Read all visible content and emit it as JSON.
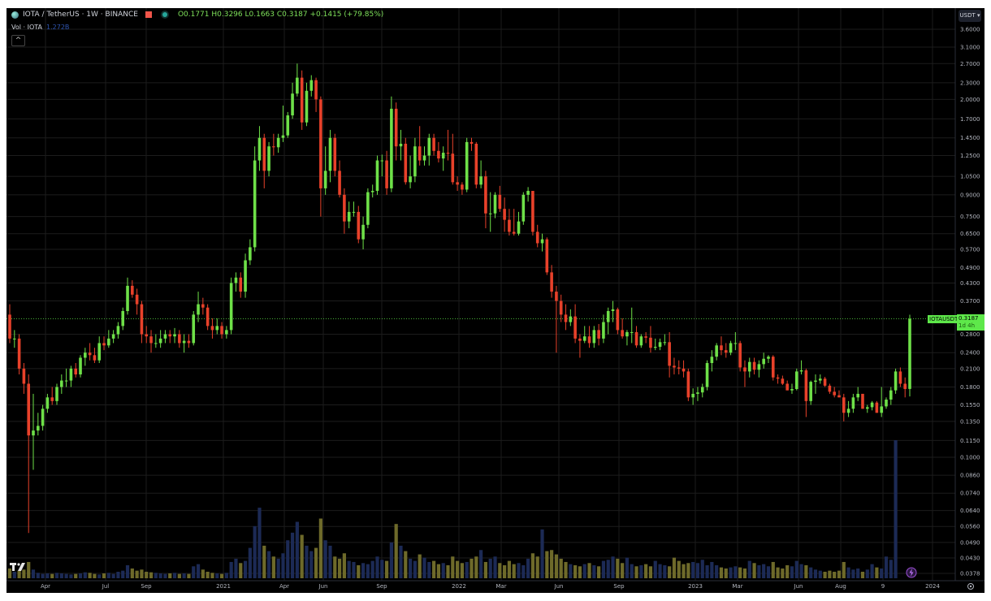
{
  "header": {
    "symbol": "IOTA / TetherUS · 1W · BINANCE",
    "ohlc_text": "O0.1771 H0.3296 L0.1663 C0.3187 +0.1415 (+79.85%)",
    "volume_label": "Vol · IOTA",
    "volume_value": "1.272B",
    "collapse_glyph": "^",
    "currency": "USDT ▾"
  },
  "price_tag": {
    "symbol": "IOTAUSDT",
    "price": "0.3187",
    "countdown": "1d 4h"
  },
  "colors": {
    "up": "#6ee048",
    "down": "#e8412a",
    "vol_up": "#1c2a55",
    "vol_down": "#6e6a2a",
    "grid": "#1c1c1c",
    "bg": "#000000",
    "accent": "#5ee84a"
  },
  "icons": {
    "logo": "tradingview-logo",
    "settings": "gear-icon",
    "flag": "flag-icon",
    "status": "market-open-dot",
    "lightning": "lightning-icon"
  },
  "chart_data": {
    "type": "candlestick",
    "interval": "1W",
    "yscale": "log",
    "ylim": [
      0.0378,
      3.6
    ],
    "grid": true,
    "y_ticks": [
      "3.6000",
      "3.1000",
      "2.7000",
      "2.3000",
      "2.0000",
      "1.7000",
      "1.4500",
      "1.2500",
      "1.0500",
      "0.9000",
      "0.7500",
      "0.6500",
      "0.5700",
      "0.4900",
      "0.4300",
      "0.3700",
      "0.2800",
      "0.2400",
      "0.2100",
      "0.1800",
      "0.1550",
      "0.1350",
      "0.1150",
      "0.1000",
      "0.0860",
      "0.0740",
      "0.0640",
      "0.0560",
      "0.0490",
      "0.0430",
      "0.0378"
    ],
    "x_ticks": [
      "Apr",
      "Jul",
      "Sep",
      "2021",
      "Apr",
      "Jun",
      "Sep",
      "2022",
      "Mar",
      "Jun",
      "Sep",
      "2023",
      "Mar",
      "Jun",
      "Aug",
      "9",
      "2024"
    ],
    "last_price": 0.3187,
    "candles_ohlc": [
      [
        0.33,
        0.36,
        0.26,
        0.27
      ],
      [
        0.27,
        0.29,
        0.25,
        0.27
      ],
      [
        0.27,
        0.28,
        0.2,
        0.21
      ],
      [
        0.21,
        0.22,
        0.17,
        0.185
      ],
      [
        0.185,
        0.2,
        0.053,
        0.12
      ],
      [
        0.12,
        0.17,
        0.09,
        0.125
      ],
      [
        0.125,
        0.145,
        0.12,
        0.13
      ],
      [
        0.13,
        0.155,
        0.125,
        0.15
      ],
      [
        0.15,
        0.17,
        0.145,
        0.165
      ],
      [
        0.165,
        0.18,
        0.155,
        0.16
      ],
      [
        0.16,
        0.185,
        0.155,
        0.18
      ],
      [
        0.18,
        0.2,
        0.17,
        0.19
      ],
      [
        0.19,
        0.21,
        0.18,
        0.19
      ],
      [
        0.19,
        0.215,
        0.18,
        0.21
      ],
      [
        0.21,
        0.22,
        0.195,
        0.2
      ],
      [
        0.2,
        0.235,
        0.195,
        0.23
      ],
      [
        0.23,
        0.25,
        0.215,
        0.24
      ],
      [
        0.24,
        0.26,
        0.225,
        0.235
      ],
      [
        0.235,
        0.25,
        0.22,
        0.225
      ],
      [
        0.225,
        0.275,
        0.22,
        0.26
      ],
      [
        0.26,
        0.275,
        0.245,
        0.255
      ],
      [
        0.255,
        0.29,
        0.25,
        0.27
      ],
      [
        0.27,
        0.29,
        0.26,
        0.28
      ],
      [
        0.28,
        0.31,
        0.27,
        0.3
      ],
      [
        0.3,
        0.35,
        0.29,
        0.34
      ],
      [
        0.34,
        0.45,
        0.33,
        0.42
      ],
      [
        0.42,
        0.44,
        0.38,
        0.39
      ],
      [
        0.39,
        0.41,
        0.33,
        0.36
      ],
      [
        0.36,
        0.37,
        0.26,
        0.28
      ],
      [
        0.28,
        0.3,
        0.26,
        0.275
      ],
      [
        0.275,
        0.29,
        0.24,
        0.26
      ],
      [
        0.26,
        0.28,
        0.25,
        0.26
      ],
      [
        0.26,
        0.29,
        0.25,
        0.27
      ],
      [
        0.27,
        0.29,
        0.26,
        0.28
      ],
      [
        0.28,
        0.29,
        0.26,
        0.275
      ],
      [
        0.275,
        0.295,
        0.26,
        0.28
      ],
      [
        0.28,
        0.29,
        0.25,
        0.26
      ],
      [
        0.26,
        0.28,
        0.24,
        0.265
      ],
      [
        0.265,
        0.28,
        0.25,
        0.26
      ],
      [
        0.26,
        0.34,
        0.255,
        0.33
      ],
      [
        0.33,
        0.4,
        0.31,
        0.36
      ],
      [
        0.36,
        0.38,
        0.33,
        0.35
      ],
      [
        0.35,
        0.36,
        0.29,
        0.3
      ],
      [
        0.3,
        0.32,
        0.27,
        0.29
      ],
      [
        0.29,
        0.32,
        0.28,
        0.3
      ],
      [
        0.3,
        0.31,
        0.27,
        0.28
      ],
      [
        0.28,
        0.3,
        0.27,
        0.29
      ],
      [
        0.29,
        0.45,
        0.28,
        0.43
      ],
      [
        0.43,
        0.47,
        0.4,
        0.45
      ],
      [
        0.45,
        0.47,
        0.38,
        0.4
      ],
      [
        0.4,
        0.55,
        0.38,
        0.52
      ],
      [
        0.52,
        0.62,
        0.5,
        0.58
      ],
      [
        0.58,
        1.35,
        0.56,
        1.2
      ],
      [
        1.2,
        1.6,
        1.1,
        1.45
      ],
      [
        1.45,
        1.5,
        0.95,
        1.1
      ],
      [
        1.1,
        1.4,
        1.05,
        1.35
      ],
      [
        1.35,
        1.5,
        1.25,
        1.34
      ],
      [
        1.34,
        1.5,
        1.28,
        1.45
      ],
      [
        1.45,
        1.9,
        1.4,
        1.48
      ],
      [
        1.48,
        1.8,
        1.45,
        1.75
      ],
      [
        1.75,
        2.3,
        1.7,
        2.1
      ],
      [
        2.1,
        2.7,
        2.05,
        2.4
      ],
      [
        2.4,
        2.55,
        1.55,
        1.65
      ],
      [
        1.65,
        2.3,
        1.6,
        2.15
      ],
      [
        2.15,
        2.45,
        2.05,
        2.35
      ],
      [
        2.35,
        2.4,
        1.8,
        2.0
      ],
      [
        2.0,
        2.05,
        0.75,
        0.95
      ],
      [
        0.95,
        1.35,
        0.9,
        1.1
      ],
      [
        1.1,
        1.55,
        1.0,
        1.45
      ],
      [
        1.45,
        1.5,
        1.05,
        1.1
      ],
      [
        1.1,
        1.2,
        0.88,
        0.9
      ],
      [
        0.9,
        0.95,
        0.65,
        0.72
      ],
      [
        0.72,
        0.85,
        0.68,
        0.78
      ],
      [
        0.78,
        0.85,
        0.75,
        0.78
      ],
      [
        0.78,
        0.82,
        0.6,
        0.62
      ],
      [
        0.62,
        0.75,
        0.57,
        0.7
      ],
      [
        0.7,
        0.95,
        0.68,
        0.92
      ],
      [
        0.92,
        0.98,
        0.88,
        0.93
      ],
      [
        0.93,
        1.25,
        0.9,
        1.2
      ],
      [
        1.2,
        1.26,
        1.05,
        1.2
      ],
      [
        1.2,
        1.3,
        0.9,
        0.95
      ],
      [
        0.95,
        2.05,
        0.92,
        1.85
      ],
      [
        1.85,
        1.95,
        1.2,
        1.35
      ],
      [
        1.35,
        1.55,
        1.2,
        1.38
      ],
      [
        1.38,
        1.45,
        0.98,
        1.0
      ],
      [
        1.0,
        1.25,
        0.95,
        1.05
      ],
      [
        1.05,
        1.45,
        1.0,
        1.35
      ],
      [
        1.35,
        1.6,
        1.15,
        1.2
      ],
      [
        1.2,
        1.35,
        1.15,
        1.25
      ],
      [
        1.25,
        1.5,
        1.15,
        1.45
      ],
      [
        1.45,
        1.5,
        1.25,
        1.3
      ],
      [
        1.3,
        1.4,
        1.18,
        1.22
      ],
      [
        1.22,
        1.35,
        1.1,
        1.28
      ],
      [
        1.28,
        1.55,
        1.2,
        1.27
      ],
      [
        1.27,
        1.5,
        0.98,
        1.0
      ],
      [
        1.0,
        1.05,
        0.93,
        0.98
      ],
      [
        0.98,
        1.0,
        0.9,
        0.94
      ],
      [
        0.94,
        1.45,
        0.92,
        1.4
      ],
      [
        1.4,
        1.45,
        1.3,
        1.38
      ],
      [
        1.38,
        1.4,
        0.95,
        0.98
      ],
      [
        0.98,
        1.2,
        0.95,
        1.05
      ],
      [
        1.05,
        1.1,
        0.68,
        0.77
      ],
      [
        0.77,
        0.92,
        0.66,
        0.77
      ],
      [
        0.77,
        0.92,
        0.74,
        0.9
      ],
      [
        0.9,
        0.97,
        0.78,
        0.8
      ],
      [
        0.8,
        0.88,
        0.66,
        0.73
      ],
      [
        0.73,
        0.8,
        0.64,
        0.66
      ],
      [
        0.66,
        0.8,
        0.64,
        0.65
      ],
      [
        0.65,
        0.78,
        0.64,
        0.72
      ],
      [
        0.72,
        0.92,
        0.7,
        0.9
      ],
      [
        0.9,
        0.96,
        0.85,
        0.93
      ],
      [
        0.93,
        0.93,
        0.64,
        0.66
      ],
      [
        0.66,
        0.7,
        0.58,
        0.6
      ],
      [
        0.6,
        0.65,
        0.56,
        0.62
      ],
      [
        0.62,
        0.63,
        0.46,
        0.47
      ],
      [
        0.47,
        0.5,
        0.38,
        0.4
      ],
      [
        0.4,
        0.42,
        0.24,
        0.37
      ],
      [
        0.37,
        0.39,
        0.31,
        0.33
      ],
      [
        0.33,
        0.36,
        0.29,
        0.31
      ],
      [
        0.31,
        0.345,
        0.3,
        0.325
      ],
      [
        0.325,
        0.36,
        0.26,
        0.27
      ],
      [
        0.27,
        0.28,
        0.23,
        0.265
      ],
      [
        0.265,
        0.3,
        0.26,
        0.275
      ],
      [
        0.275,
        0.3,
        0.25,
        0.26
      ],
      [
        0.26,
        0.3,
        0.25,
        0.29
      ],
      [
        0.29,
        0.305,
        0.255,
        0.27
      ],
      [
        0.27,
        0.33,
        0.26,
        0.31
      ],
      [
        0.31,
        0.35,
        0.28,
        0.34
      ],
      [
        0.34,
        0.37,
        0.31,
        0.345
      ],
      [
        0.345,
        0.35,
        0.28,
        0.29
      ],
      [
        0.29,
        0.32,
        0.27,
        0.275
      ],
      [
        0.275,
        0.29,
        0.255,
        0.285
      ],
      [
        0.285,
        0.35,
        0.26,
        0.285
      ],
      [
        0.285,
        0.3,
        0.25,
        0.255
      ],
      [
        0.255,
        0.28,
        0.25,
        0.275
      ],
      [
        0.275,
        0.285,
        0.26,
        0.272
      ],
      [
        0.272,
        0.3,
        0.24,
        0.25
      ],
      [
        0.25,
        0.27,
        0.245,
        0.252
      ],
      [
        0.252,
        0.27,
        0.245,
        0.262
      ],
      [
        0.262,
        0.28,
        0.255,
        0.262
      ],
      [
        0.262,
        0.285,
        0.195,
        0.215
      ],
      [
        0.215,
        0.23,
        0.2,
        0.212
      ],
      [
        0.212,
        0.225,
        0.2,
        0.21
      ],
      [
        0.21,
        0.225,
        0.195,
        0.205
      ],
      [
        0.205,
        0.21,
        0.16,
        0.165
      ],
      [
        0.165,
        0.178,
        0.155,
        0.17
      ],
      [
        0.17,
        0.18,
        0.16,
        0.172
      ],
      [
        0.172,
        0.185,
        0.165,
        0.18
      ],
      [
        0.18,
        0.225,
        0.175,
        0.22
      ],
      [
        0.22,
        0.245,
        0.205,
        0.232
      ],
      [
        0.232,
        0.26,
        0.225,
        0.255
      ],
      [
        0.255,
        0.275,
        0.235,
        0.245
      ],
      [
        0.245,
        0.26,
        0.23,
        0.24
      ],
      [
        0.24,
        0.265,
        0.235,
        0.26
      ],
      [
        0.26,
        0.285,
        0.245,
        0.26
      ],
      [
        0.26,
        0.265,
        0.205,
        0.212
      ],
      [
        0.212,
        0.225,
        0.18,
        0.205
      ],
      [
        0.205,
        0.23,
        0.195,
        0.222
      ],
      [
        0.222,
        0.23,
        0.2,
        0.208
      ],
      [
        0.208,
        0.225,
        0.195,
        0.218
      ],
      [
        0.218,
        0.24,
        0.21,
        0.228
      ],
      [
        0.228,
        0.235,
        0.22,
        0.232
      ],
      [
        0.232,
        0.235,
        0.19,
        0.195
      ],
      [
        0.195,
        0.2,
        0.185,
        0.193
      ],
      [
        0.193,
        0.198,
        0.183,
        0.185
      ],
      [
        0.185,
        0.19,
        0.175,
        0.175
      ],
      [
        0.175,
        0.185,
        0.17,
        0.177
      ],
      [
        0.177,
        0.21,
        0.175,
        0.205
      ],
      [
        0.205,
        0.225,
        0.2,
        0.207
      ],
      [
        0.207,
        0.21,
        0.14,
        0.16
      ],
      [
        0.16,
        0.19,
        0.155,
        0.188
      ],
      [
        0.188,
        0.2,
        0.17,
        0.19
      ],
      [
        0.19,
        0.2,
        0.185,
        0.193
      ],
      [
        0.193,
        0.196,
        0.18,
        0.182
      ],
      [
        0.182,
        0.185,
        0.17,
        0.173
      ],
      [
        0.173,
        0.18,
        0.165,
        0.168
      ],
      [
        0.168,
        0.175,
        0.165,
        0.165
      ],
      [
        0.165,
        0.17,
        0.135,
        0.145
      ],
      [
        0.145,
        0.16,
        0.14,
        0.15
      ],
      [
        0.15,
        0.17,
        0.145,
        0.165
      ],
      [
        0.165,
        0.18,
        0.16,
        0.17
      ],
      [
        0.17,
        0.17,
        0.15,
        0.15
      ],
      [
        0.15,
        0.155,
        0.145,
        0.152
      ],
      [
        0.152,
        0.16,
        0.148,
        0.158
      ],
      [
        0.158,
        0.16,
        0.145,
        0.145
      ],
      [
        0.145,
        0.18,
        0.14,
        0.153
      ],
      [
        0.153,
        0.165,
        0.15,
        0.162
      ],
      [
        0.162,
        0.18,
        0.155,
        0.175
      ],
      [
        0.175,
        0.21,
        0.17,
        0.205
      ],
      [
        0.205,
        0.212,
        0.18,
        0.185
      ],
      [
        0.185,
        0.195,
        0.165,
        0.177
      ],
      [
        0.1771,
        0.3296,
        0.1663,
        0.3187
      ]
    ],
    "volume_millions": [
      90,
      60,
      70,
      80,
      150,
      80,
      50,
      40,
      45,
      40,
      50,
      45,
      40,
      35,
      40,
      45,
      55,
      50,
      40,
      35,
      45,
      50,
      40,
      60,
      70,
      120,
      90,
      70,
      80,
      60,
      55,
      50,
      45,
      40,
      45,
      50,
      40,
      45,
      40,
      110,
      130,
      80,
      60,
      50,
      45,
      40,
      50,
      150,
      180,
      140,
      160,
      280,
      480,
      650,
      300,
      250,
      200,
      180,
      230,
      350,
      420,
      520,
      400,
      300,
      250,
      280,
      550,
      350,
      300,
      200,
      180,
      230,
      160,
      150,
      120,
      140,
      130,
      160,
      200,
      170,
      160,
      330,
      500,
      300,
      250,
      180,
      160,
      220,
      190,
      150,
      160,
      130,
      140,
      120,
      200,
      160,
      140,
      150,
      180,
      200,
      260,
      150,
      180,
      200,
      140,
      120,
      160,
      130,
      140,
      120,
      180,
      230,
      200,
      450,
      250,
      260,
      220,
      180,
      150,
      130,
      120,
      110,
      130,
      140,
      120,
      110,
      160,
      170,
      200,
      180,
      140,
      190,
      130,
      110,
      120,
      130,
      110,
      160,
      130,
      120,
      110,
      190,
      160,
      130,
      140,
      150,
      140,
      170,
      120,
      150,
      120,
      100,
      90,
      100,
      110,
      100,
      90,
      160,
      140,
      120,
      130,
      110,
      150,
      100,
      90,
      120,
      110,
      160,
      130,
      120,
      100,
      80,
      70,
      60,
      70,
      60,
      70,
      150,
      100,
      80,
      90,
      60,
      80,
      130,
      100,
      90,
      200,
      170,
      1272
    ]
  }
}
